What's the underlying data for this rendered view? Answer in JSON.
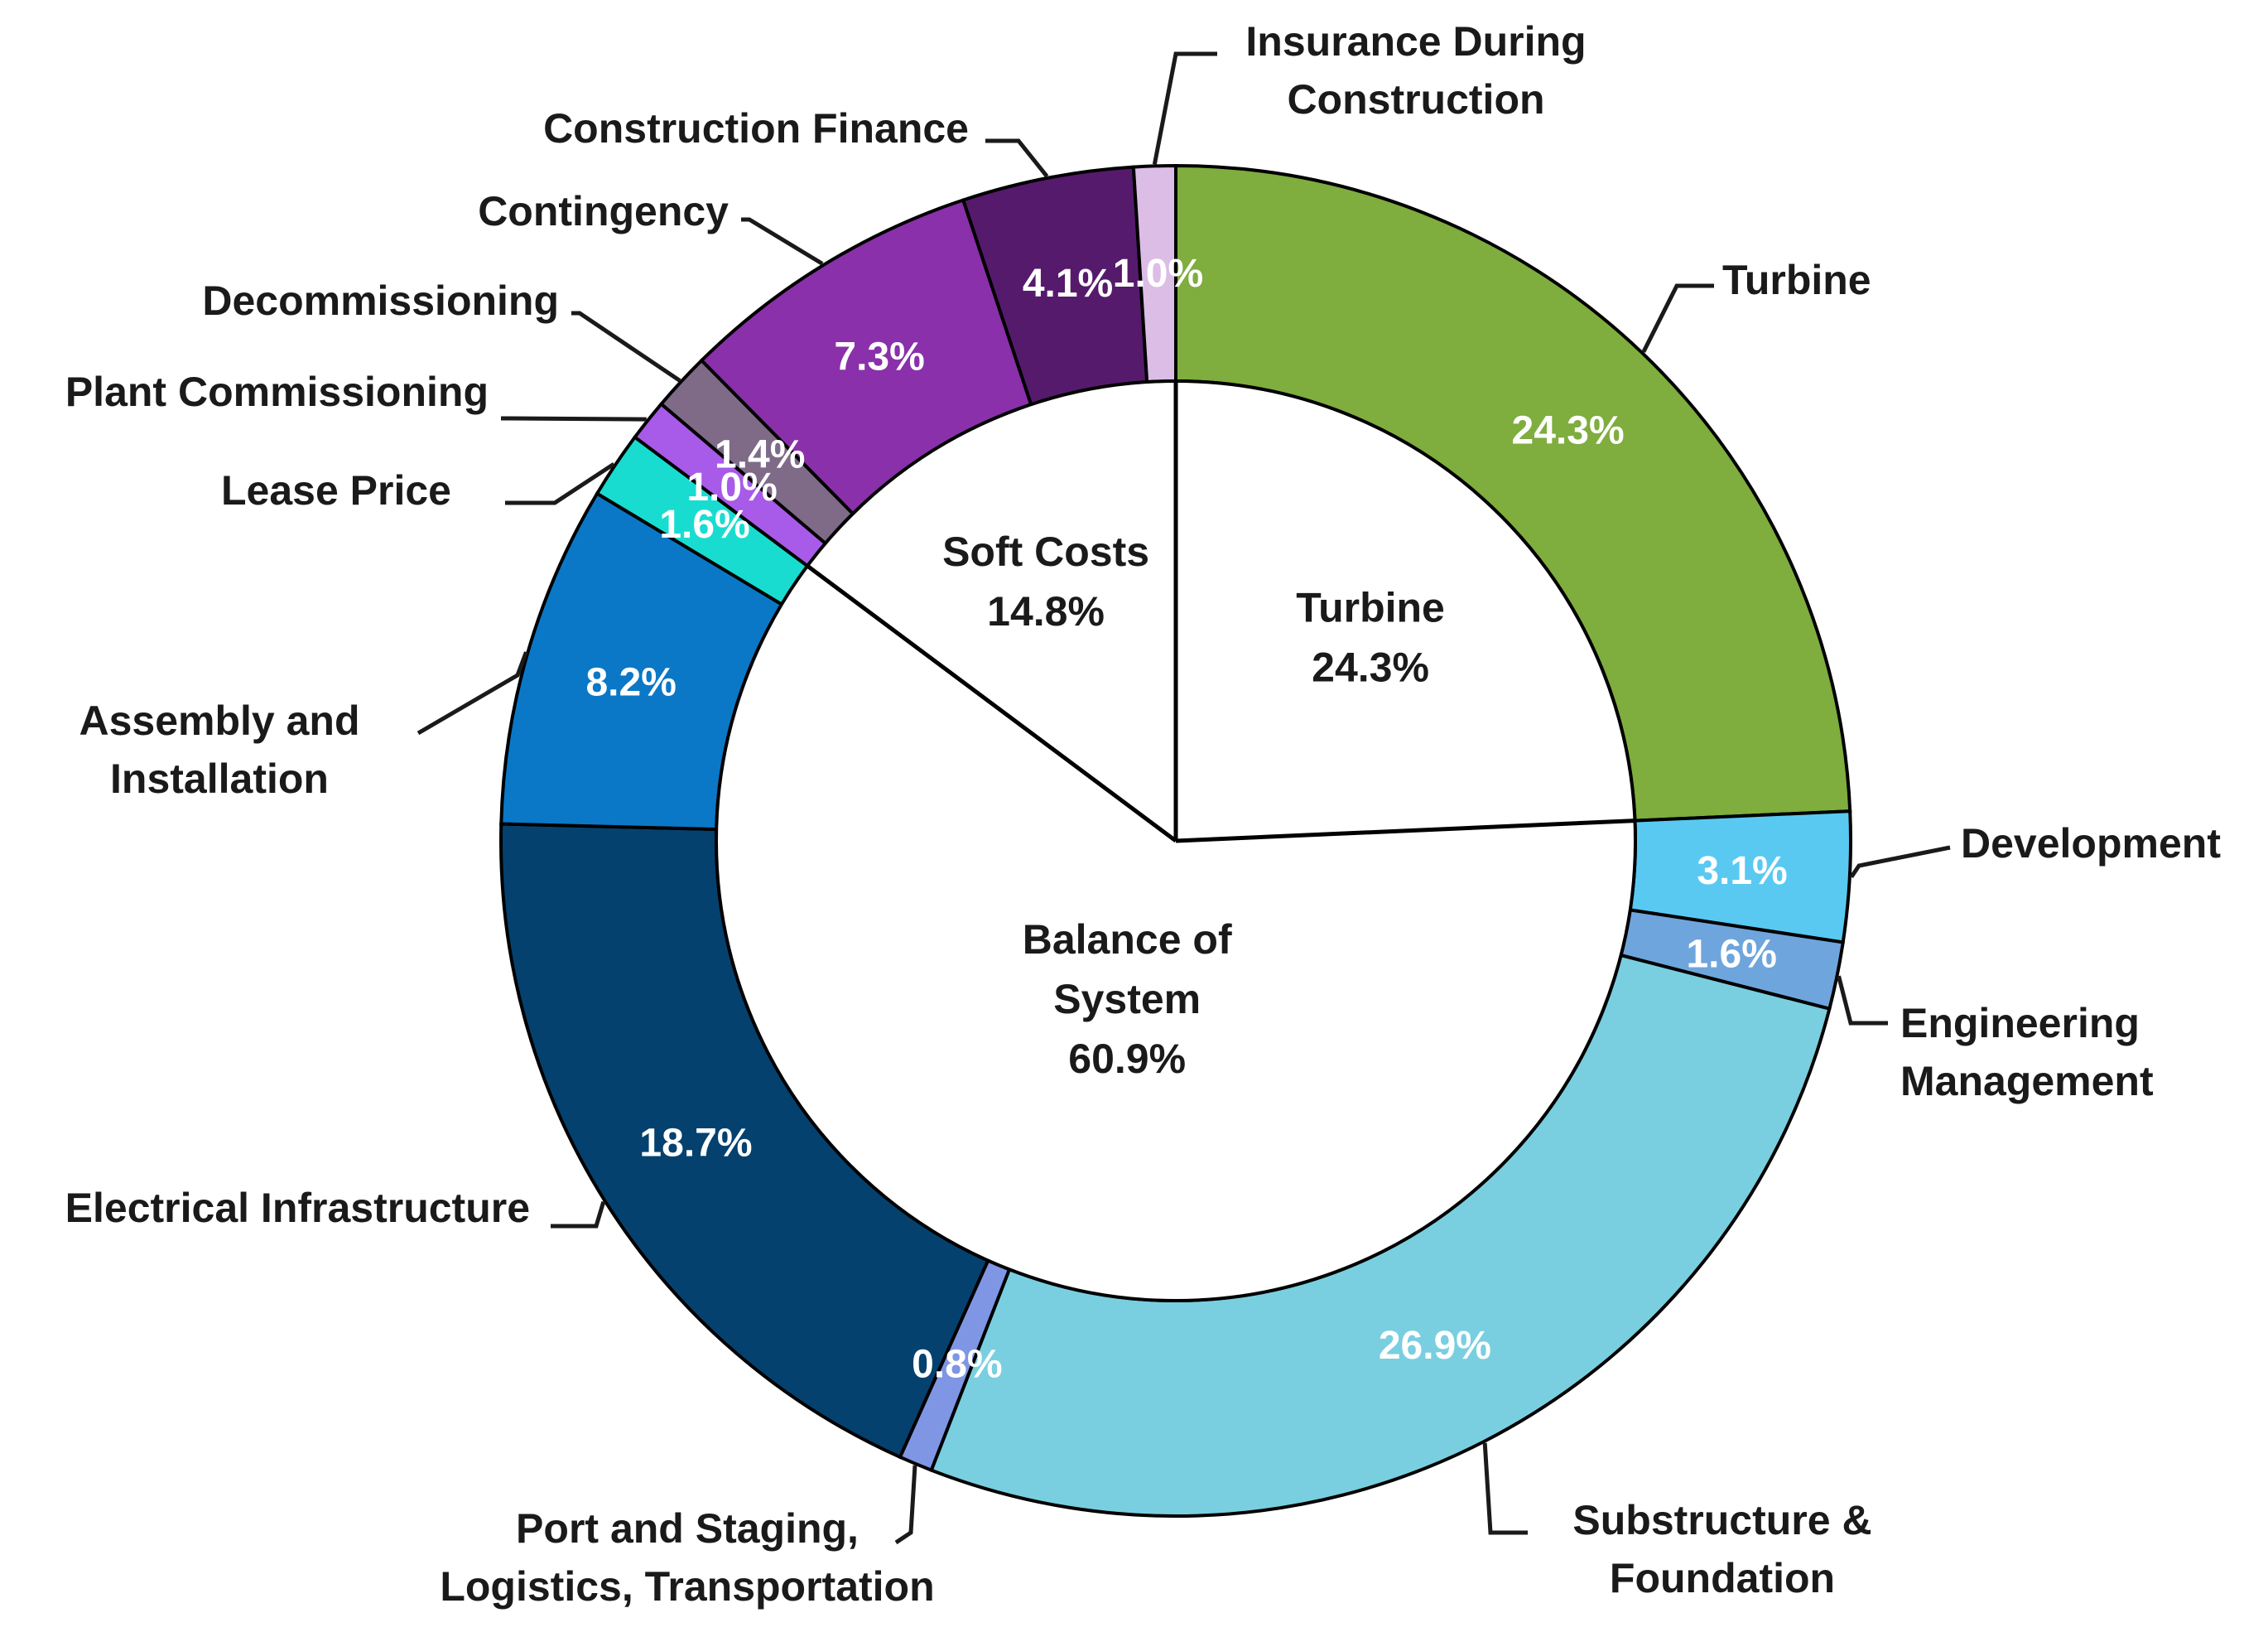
{
  "chart_data": {
    "type": "donut",
    "outer_ring": [
      {
        "name": "Turbine",
        "label_lines": [
          "Turbine"
        ],
        "value": 24.3,
        "pct_text": "24.3%",
        "color": "#7fad3e"
      },
      {
        "name": "Development",
        "label_lines": [
          "Development"
        ],
        "value": 3.1,
        "pct_text": "3.1%",
        "color": "#59c9f2"
      },
      {
        "name": "Engineering Management",
        "label_lines": [
          "Engineering",
          "Management"
        ],
        "value": 1.6,
        "pct_text": "1.6%",
        "color": "#6ea5dc"
      },
      {
        "name": "Substructure & Foundation",
        "label_lines": [
          "Substructure &",
          "Foundation"
        ],
        "value": 26.9,
        "pct_text": "26.9%",
        "color": "#79cfe0"
      },
      {
        "name": "Port and Staging, Logistics, Transportation",
        "label_lines": [
          "Port and Staging,",
          "Logistics, Transportation"
        ],
        "value": 0.8,
        "pct_text": "0.8%",
        "color": "#7f96e4"
      },
      {
        "name": "Electrical Infrastructure",
        "label_lines": [
          "Electrical Infrastructure"
        ],
        "value": 18.7,
        "pct_text": "18.7%",
        "color": "#04416f"
      },
      {
        "name": "Assembly and Installation",
        "label_lines": [
          "Assembly and",
          "Installation"
        ],
        "value": 8.2,
        "pct_text": "8.2%",
        "color": "#0a78c6"
      },
      {
        "name": "Lease Price",
        "label_lines": [
          "Lease Price"
        ],
        "value": 1.6,
        "pct_text": "1.6%",
        "color": "#19dcd0"
      },
      {
        "name": "Plant Commissioning",
        "label_lines": [
          "Plant Commissioning"
        ],
        "value": 1.0,
        "pct_text": "1.0%",
        "color": "#a85ae8"
      },
      {
        "name": "Decommissioning",
        "label_lines": [
          "Decommissioning"
        ],
        "value": 1.4,
        "pct_text": "1.4%",
        "color": "#7f6a88"
      },
      {
        "name": "Contingency",
        "label_lines": [
          "Contingency"
        ],
        "value": 7.3,
        "pct_text": "7.3%",
        "color": "#8a30aa"
      },
      {
        "name": "Construction Finance",
        "label_lines": [
          "Construction Finance"
        ],
        "value": 4.1,
        "pct_text": "4.1%",
        "color": "#561a6c"
      },
      {
        "name": "Insurance During Construction",
        "label_lines": [
          "Insurance During",
          "Construction"
        ],
        "value": 1.0,
        "pct_text": "1.0%",
        "color": "#dbbde6"
      }
    ],
    "inner_pie": [
      {
        "name": "Turbine",
        "label_lines": [
          "Turbine",
          "24.3%"
        ],
        "value": 24.3
      },
      {
        "name": "Balance of System",
        "label_lines": [
          "Balance of",
          "System",
          "60.9%"
        ],
        "value": 60.9
      },
      {
        "name": "Soft Costs",
        "label_lines": [
          "Soft Costs",
          "14.8%"
        ],
        "value": 14.8
      }
    ]
  }
}
